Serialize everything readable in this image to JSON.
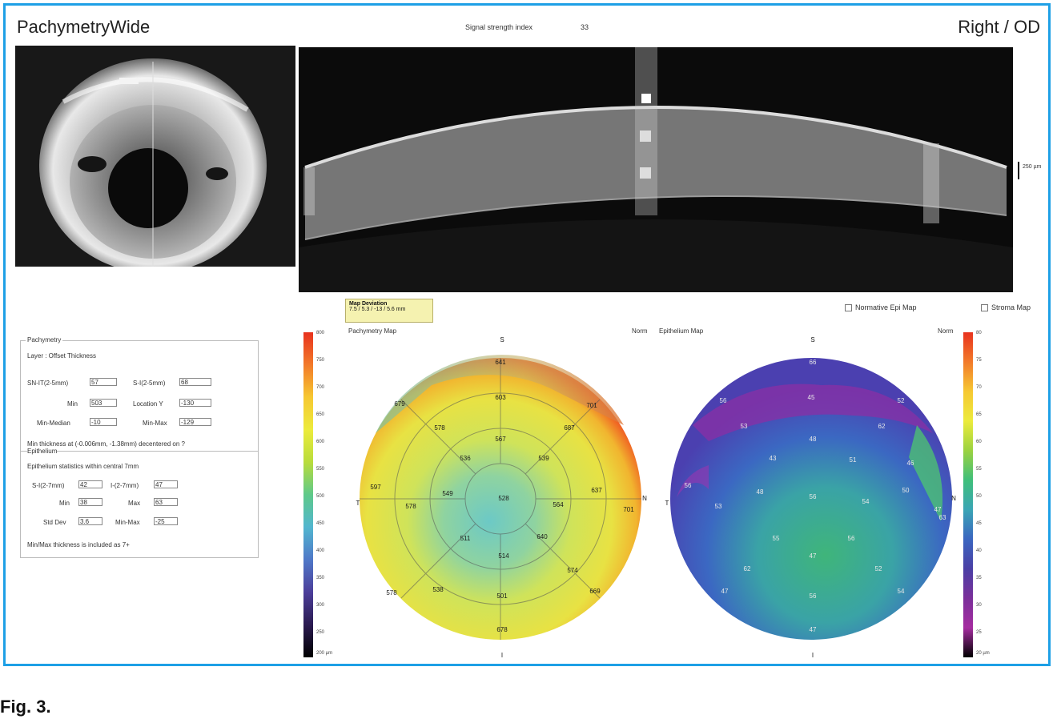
{
  "header": {
    "app_title": "PachymetryWide",
    "eye": "Right / OD",
    "signal_label": "Signal strength index",
    "signal_value": "33"
  },
  "oct": {
    "scale_label": "250 µm"
  },
  "pachymetry_panel": {
    "title": "Pachymetry",
    "layer": "Layer : Offset Thickness",
    "fields": [
      {
        "label": "SN-IT(2-5mm)",
        "value": "57"
      },
      {
        "label": "S-I(2-5mm)",
        "value": "68"
      },
      {
        "label": "Min",
        "value": "503"
      },
      {
        "label": "Location Y",
        "value": "-130"
      },
      {
        "label": "Min-Median",
        "value": "-10"
      },
      {
        "label": "Min-Max",
        "value": "-129"
      }
    ],
    "note": "Min thickness at (-0.006mm, -1.38mm) decentered on ?",
    "epithelium_title": "Epithelium",
    "epithelium_note": "Epithelium statistics within central 7mm",
    "epithelium_fields": [
      {
        "label": "S-I(2-7mm)",
        "value": "42"
      },
      {
        "label": "I-(2-7mm)",
        "value": "47"
      },
      {
        "label": "Min",
        "value": "38"
      },
      {
        "label": "Max",
        "value": "63"
      },
      {
        "label": "Std Dev",
        "value": "3.6"
      },
      {
        "label": "Min-Max",
        "value": "-25"
      }
    ],
    "epithelium_footer": "Min/Max thickness is included as 7+"
  },
  "tooltip": {
    "title": "Map Deviation",
    "value": "7.5 / 5.3 / -13 / 5.6 mm"
  },
  "checkboxes": {
    "normative": "Normative Epi Map",
    "stroma": "Stroma Map"
  },
  "maps": {
    "left_label": "Pachymetry Map",
    "right_unit": "Norm",
    "right_label": "Epithelium Map",
    "right_corner": "Norm",
    "orient": {
      "S": "S",
      "I": "I",
      "T": "T",
      "N": "N"
    },
    "left_scale_min": "200 µm",
    "right_scale_min": "20 µm",
    "left_ticks": [
      "800",
      "750",
      "700",
      "650",
      "600",
      "550",
      "500",
      "450",
      "400",
      "350",
      "300",
      "250"
    ],
    "right_ticks": [
      "80",
      "75",
      "70",
      "65",
      "60",
      "55",
      "50",
      "45",
      "40",
      "35",
      "30",
      "25"
    ],
    "pachy_values": [
      "641",
      "679",
      "603",
      "701",
      "578",
      "567",
      "687",
      "597",
      "536",
      "539",
      "637",
      "578",
      "549",
      "528",
      "564",
      "701",
      "511",
      "640",
      "514",
      "538",
      "574",
      "578",
      "501",
      "669",
      "678"
    ],
    "epi_values": [
      "66",
      "56",
      "45",
      "52",
      "53",
      "48",
      "62",
      "43",
      "51",
      "56",
      "46",
      "48",
      "56",
      "54",
      "53",
      "50",
      "47",
      "55",
      "56",
      "62",
      "47",
      "52",
      "47",
      "56",
      "54",
      "47",
      "63"
    ]
  },
  "caption": "Fig. 3."
}
